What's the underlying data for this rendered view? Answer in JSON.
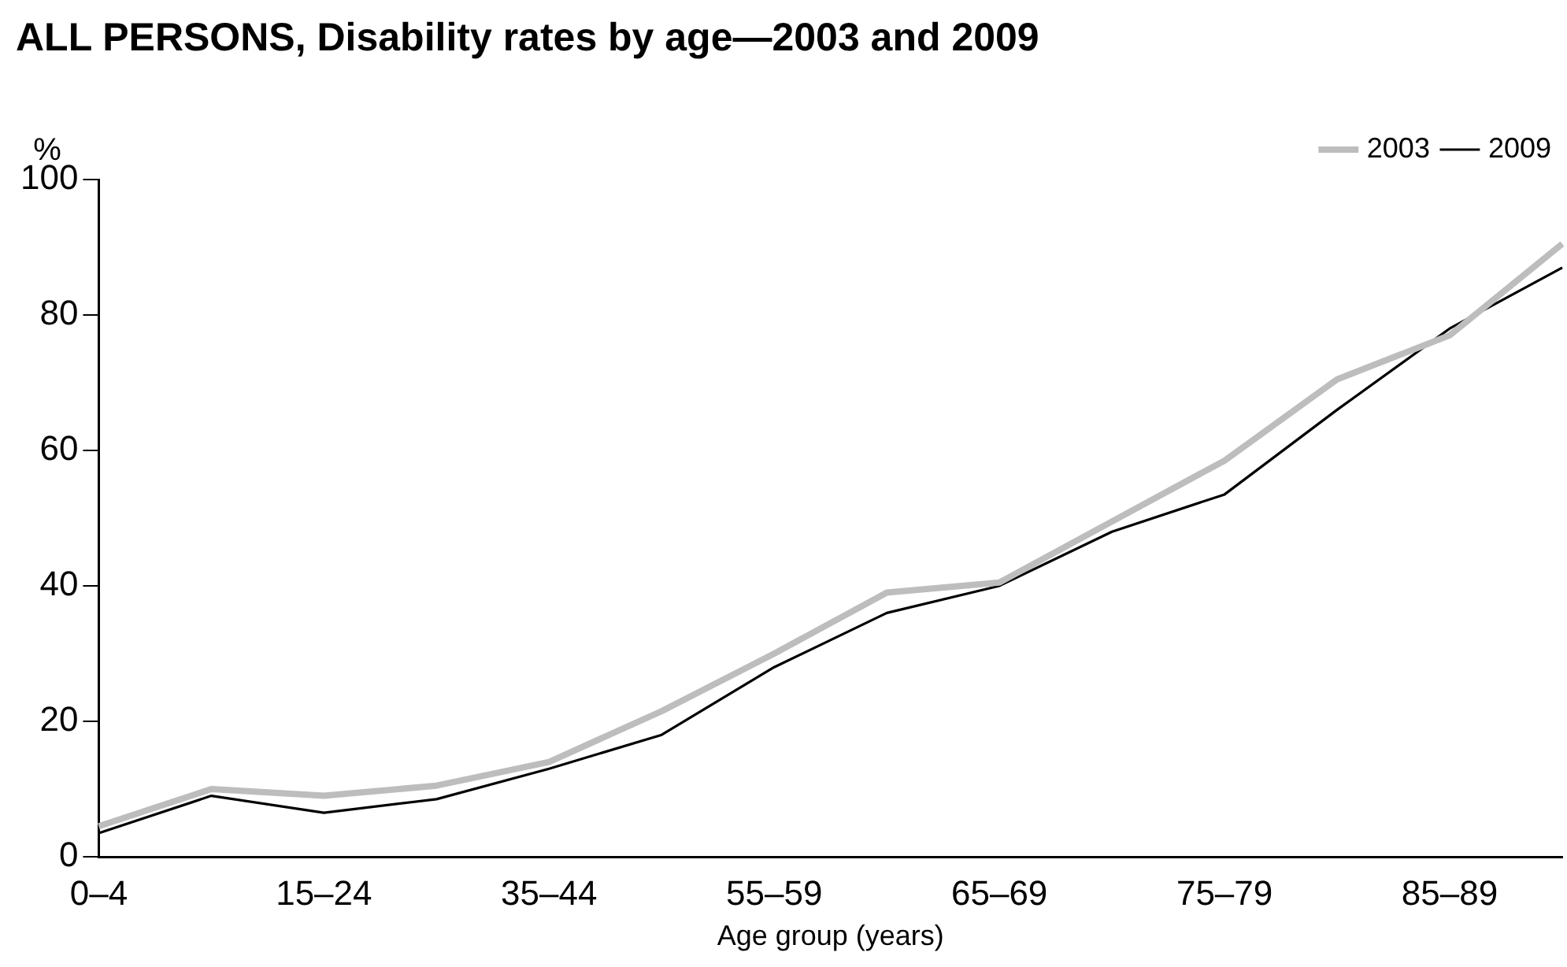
{
  "chart_data": {
    "type": "line",
    "title": "ALL PERSONS, Disability rates by age—2003 and 2009",
    "xlabel": "Age group (years)",
    "ylabel": "%",
    "categories": [
      "0–4",
      null,
      "15–24",
      null,
      "35–44",
      null,
      "55–59",
      null,
      "65–69",
      null,
      "75–79",
      null,
      "85–89",
      null
    ],
    "series": [
      {
        "name": "2009",
        "color": "#000000",
        "values": [
          3.5,
          9,
          6.5,
          8.5,
          13,
          18,
          28,
          36,
          40,
          48,
          53.5,
          66,
          78,
          87
        ]
      },
      {
        "name": "2003",
        "color": "#bdbdbd",
        "values": [
          4.5,
          10,
          9,
          10.5,
          14,
          21.5,
          30,
          39,
          40.5,
          49.5,
          58.5,
          70.5,
          77,
          90.5
        ]
      }
    ],
    "ylim": [
      0,
      100
    ],
    "yticks": [
      0,
      20,
      40,
      60,
      80,
      100
    ],
    "grid": false,
    "legend": "top right",
    "marker": "none",
    "line_style": "solid"
  }
}
